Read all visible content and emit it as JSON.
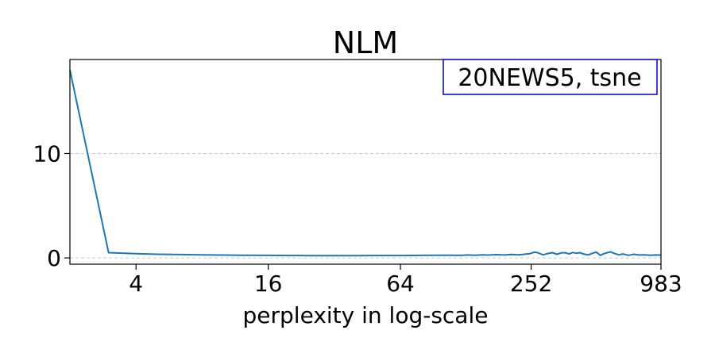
{
  "chart_data": {
    "type": "line",
    "title": "NLM",
    "xlabel": "perplexity in log-scale",
    "ylabel": "",
    "x_scale": "log2",
    "xlim": [
      2,
      983
    ],
    "ylim": [
      -0.6,
      19
    ],
    "x_ticks": [
      4,
      16,
      64,
      252,
      983
    ],
    "x_tick_labels": [
      "4",
      "16",
      "64",
      "252",
      "983"
    ],
    "y_ticks": [
      0,
      10
    ],
    "y_tick_labels": [
      "0",
      "10"
    ],
    "grid": "horizontal dashed",
    "legend": {
      "text": "20NEWS5, tsne",
      "placement": "top-right"
    },
    "colors": {
      "line": "#1f77b4",
      "legend_border": "#0000cc",
      "grid": "#cccccc"
    },
    "series": [
      {
        "x": [
          2,
          3,
          4,
          5,
          6,
          8,
          10,
          12,
          16,
          20,
          24,
          32,
          40,
          48,
          64,
          80,
          96,
          110,
          120,
          130,
          140,
          150,
          160,
          175,
          190,
          205,
          220,
          235,
          250,
          260,
          270,
          285,
          300,
          315,
          330,
          345,
          360,
          375,
          390,
          405,
          420,
          440,
          460,
          480,
          500,
          520,
          540,
          560,
          580,
          600,
          630,
          660,
          700,
          740,
          780,
          830,
          880,
          930,
          983
        ],
        "y": [
          18.0,
          0.5,
          0.4,
          0.35,
          0.33,
          0.3,
          0.27,
          0.25,
          0.24,
          0.23,
          0.22,
          0.22,
          0.22,
          0.23,
          0.23,
          0.24,
          0.25,
          0.26,
          0.24,
          0.28,
          0.25,
          0.3,
          0.27,
          0.31,
          0.28,
          0.33,
          0.3,
          0.35,
          0.42,
          0.55,
          0.5,
          0.3,
          0.42,
          0.5,
          0.35,
          0.48,
          0.5,
          0.38,
          0.52,
          0.45,
          0.5,
          0.35,
          0.3,
          0.45,
          0.55,
          0.25,
          0.4,
          0.5,
          0.58,
          0.45,
          0.3,
          0.38,
          0.25,
          0.35,
          0.28,
          0.3,
          0.25,
          0.28,
          0.27
        ]
      }
    ]
  }
}
